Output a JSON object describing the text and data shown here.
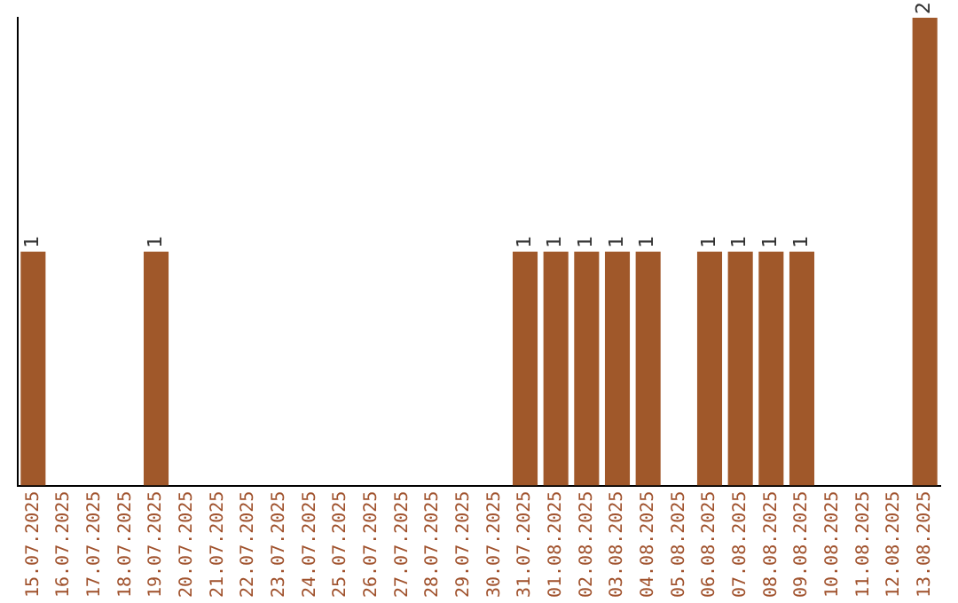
{
  "chart_data": {
    "type": "bar",
    "categories": [
      "15.07.2025",
      "16.07.2025",
      "17.07.2025",
      "18.07.2025",
      "19.07.2025",
      "20.07.2025",
      "21.07.2025",
      "22.07.2025",
      "23.07.2025",
      "24.07.2025",
      "25.07.2025",
      "26.07.2025",
      "27.07.2025",
      "28.07.2025",
      "29.07.2025",
      "30.07.2025",
      "31.07.2025",
      "01.08.2025",
      "02.08.2025",
      "03.08.2025",
      "04.08.2025",
      "05.08.2025",
      "06.08.2025",
      "07.08.2025",
      "08.08.2025",
      "09.08.2025",
      "10.08.2025",
      "11.08.2025",
      "12.08.2025",
      "13.08.2025"
    ],
    "values": [
      1,
      0,
      0,
      0,
      1,
      0,
      0,
      0,
      0,
      0,
      0,
      0,
      0,
      0,
      0,
      0,
      1,
      1,
      1,
      1,
      1,
      0,
      1,
      1,
      1,
      1,
      0,
      0,
      0,
      2
    ],
    "value_labels": [
      "1",
      null,
      null,
      null,
      "1",
      null,
      null,
      null,
      null,
      null,
      null,
      null,
      null,
      null,
      null,
      null,
      "1",
      "1",
      "1",
      "1",
      "1",
      null,
      "1",
      "1",
      "1",
      "1",
      null,
      null,
      null,
      "2"
    ],
    "color": "#a0582a",
    "tick_labels": "x",
    "grid": false,
    "legend": false
  }
}
